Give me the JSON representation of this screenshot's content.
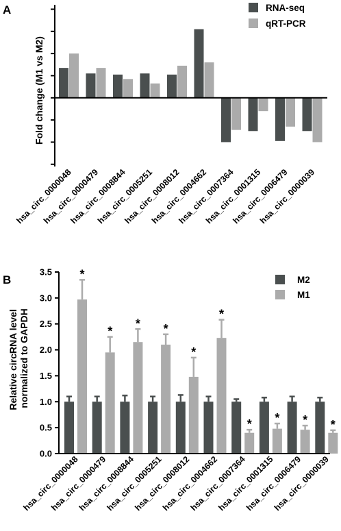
{
  "colors": {
    "dark": "#4a4f4f",
    "light": "#ababab",
    "axis": "#000000"
  },
  "chart_data": [
    {
      "panel": "A",
      "type": "bar",
      "ylabel": "Fold change (M1 vs M2)",
      "categories": [
        "hsa_circ_0000048",
        "hsa_circ_0000479",
        "hsa_circ_0008844",
        "hsa_circ_0005251",
        "hsa_circ_0008012",
        "hsa_circ_0004662",
        "hsa_circ_0007364",
        "hsa_circ_0001315",
        "hsa_circ_0006479",
        "hsa_circ_0000039"
      ],
      "series": [
        {
          "name": "RNA-seq",
          "color": "#4a4f4f",
          "values": [
            1.35,
            1.1,
            1.05,
            1.1,
            1.05,
            3.1,
            -2.0,
            -1.5,
            -1.95,
            -1.5
          ]
        },
        {
          "name": "qRT-PCR",
          "color": "#ababab",
          "values": [
            2.0,
            1.35,
            0.85,
            0.65,
            1.45,
            1.6,
            -1.45,
            -0.6,
            -1.3,
            -2.0
          ]
        }
      ],
      "ylim": [
        -3.1,
        4.2
      ],
      "yticks": [
        -3,
        -2,
        -1,
        0,
        1,
        2,
        3,
        4
      ],
      "ytick_labels_shown": false,
      "legend": "top-right",
      "grid": false
    },
    {
      "panel": "B",
      "type": "bar",
      "ylabel": "Relative circRNA level normalized to GAPDH",
      "categories": [
        "hsa_circ_0000048",
        "hsa_circ_0000479",
        "hsa_circ_0008844",
        "hsa_circ_0005251",
        "hsa_circ_0008012",
        "hsa_circ_0004662",
        "hsa_circ_0007364",
        "hsa_circ_0001315",
        "hsa_circ_0006479",
        "hsa_circ_0000039"
      ],
      "series": [
        {
          "name": "M2",
          "color": "#4a4f4f",
          "values": [
            1.0,
            1.0,
            1.0,
            1.0,
            1.0,
            1.0,
            1.0,
            1.0,
            1.0,
            1.0
          ],
          "errors": [
            0.1,
            0.1,
            0.12,
            0.1,
            0.13,
            0.1,
            0.05,
            0.08,
            0.1,
            0.08
          ]
        },
        {
          "name": "M1",
          "color": "#ababab",
          "values": [
            2.97,
            1.95,
            2.15,
            2.1,
            1.48,
            2.23,
            0.4,
            0.48,
            0.46,
            0.4
          ],
          "errors": [
            0.38,
            0.3,
            0.25,
            0.2,
            0.37,
            0.35,
            0.06,
            0.1,
            0.08,
            0.05
          ]
        }
      ],
      "significance": [
        "*",
        "*",
        "*",
        "*",
        "*",
        "*",
        "*",
        "*",
        "*",
        "*"
      ],
      "ylim": [
        0,
        3.5
      ],
      "yticks": [
        0.0,
        0.5,
        1.0,
        1.5,
        2.0,
        2.5,
        3.0,
        3.5
      ],
      "ytick_labels": [
        "0.0",
        "0.5",
        "1.0",
        "1.5",
        "2.0",
        "2.5",
        "3.0",
        "3.5"
      ],
      "legend": "top-right",
      "grid": false
    }
  ]
}
